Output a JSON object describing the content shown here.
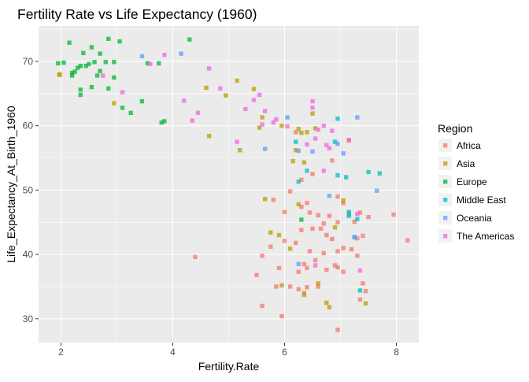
{
  "chart_data": {
    "type": "scatter",
    "title": "Fertility Rate vs Life Expectancy (1960)",
    "xlabel": "Fertility.Rate",
    "ylabel": "Life_Expectancy_At_Birth_1960",
    "xlim": [
      1.6,
      8.4
    ],
    "ylim": [
      26.3,
      75.5
    ],
    "xticks": [
      2,
      4,
      6,
      8
    ],
    "yticks": [
      30,
      40,
      50,
      60,
      70
    ],
    "grid": true,
    "legend": {
      "title": "Region",
      "placement": "right"
    },
    "series": [
      {
        "name": "Africa",
        "color": "#F8766D",
        "points": [
          [
            5.6,
            32.0
          ],
          [
            5.95,
            30.4
          ],
          [
            5.5,
            36.8
          ],
          [
            5.9,
            37.9
          ],
          [
            5.85,
            35.0
          ],
          [
            6.1,
            35.0
          ],
          [
            6.25,
            34.6
          ],
          [
            6.4,
            34.9
          ],
          [
            6.6,
            35.0
          ],
          [
            6.35,
            33.7
          ],
          [
            6.75,
            37.6
          ],
          [
            6.9,
            38.3
          ],
          [
            6.95,
            38.0
          ],
          [
            7.05,
            37.3
          ],
          [
            7.35,
            33.0
          ],
          [
            7.4,
            35.5
          ],
          [
            6.95,
            28.3
          ],
          [
            7.45,
            34.3
          ],
          [
            4.4,
            39.6
          ],
          [
            5.6,
            39.8
          ],
          [
            5.75,
            41.2
          ],
          [
            6.0,
            42.1
          ],
          [
            6.2,
            41.8
          ],
          [
            6.3,
            43.8
          ],
          [
            6.45,
            40.5
          ],
          [
            6.55,
            39.1
          ],
          [
            6.7,
            40.2
          ],
          [
            6.75,
            43.0
          ],
          [
            6.85,
            42.4
          ],
          [
            6.95,
            40.5
          ],
          [
            7.05,
            41.0
          ],
          [
            7.2,
            40.8
          ],
          [
            7.3,
            39.8
          ],
          [
            7.4,
            42.9
          ],
          [
            6.25,
            37.3
          ],
          [
            6.4,
            37.9
          ],
          [
            6.35,
            38.5
          ],
          [
            5.8,
            48.5
          ],
          [
            6.1,
            49.8
          ],
          [
            6.0,
            46.6
          ],
          [
            6.3,
            47.4
          ],
          [
            6.4,
            48.0
          ],
          [
            6.45,
            46.5
          ],
          [
            6.6,
            46.1
          ],
          [
            6.7,
            44.8
          ],
          [
            6.8,
            46.0
          ],
          [
            6.95,
            45.0
          ],
          [
            7.15,
            46.3
          ],
          [
            7.25,
            45.1
          ],
          [
            7.35,
            46.5
          ],
          [
            7.5,
            45.8
          ],
          [
            7.95,
            46.2
          ],
          [
            8.2,
            42.2
          ],
          [
            6.5,
            44.0
          ],
          [
            6.65,
            44.0
          ],
          [
            6.3,
            51.6
          ],
          [
            6.5,
            52.5
          ],
          [
            6.85,
            54.6
          ],
          [
            6.95,
            49.0
          ],
          [
            7.05,
            48.0
          ],
          [
            7.3,
            42.5
          ],
          [
            6.2,
            59.0
          ]
        ]
      },
      {
        "name": "Asia",
        "color": "#B79F00",
        "points": [
          [
            1.97,
            68.0
          ],
          [
            1.98,
            67.9
          ],
          [
            2.95,
            63.5
          ],
          [
            4.6,
            65.9
          ],
          [
            4.95,
            64.7
          ],
          [
            5.15,
            67.0
          ],
          [
            5.45,
            65.7
          ],
          [
            4.65,
            58.4
          ],
          [
            5.2,
            56.2
          ],
          [
            5.55,
            59.7
          ],
          [
            5.6,
            61.3
          ],
          [
            5.95,
            60.0
          ],
          [
            6.25,
            59.5
          ],
          [
            6.3,
            58.9
          ],
          [
            6.4,
            59.0
          ],
          [
            6.5,
            61.9
          ],
          [
            6.55,
            59.6
          ],
          [
            7.15,
            57.7
          ],
          [
            6.15,
            54.5
          ],
          [
            6.35,
            54.3
          ],
          [
            6.2,
            56.2
          ],
          [
            5.65,
            48.6
          ],
          [
            5.75,
            43.4
          ],
          [
            5.9,
            43.0
          ],
          [
            6.1,
            40.9
          ],
          [
            5.95,
            35.2
          ],
          [
            6.35,
            34.0
          ],
          [
            6.75,
            32.5
          ],
          [
            6.8,
            31.8
          ],
          [
            7.45,
            32.4
          ],
          [
            6.6,
            35.5
          ],
          [
            7.05,
            48.4
          ],
          [
            6.9,
            44.2
          ],
          [
            6.25,
            47.8
          ]
        ]
      },
      {
        "name": "Europe",
        "color": "#00BA38",
        "points": [
          [
            1.95,
            69.7
          ],
          [
            2.05,
            69.8
          ],
          [
            2.15,
            72.9
          ],
          [
            2.2,
            68.2
          ],
          [
            2.25,
            68.4
          ],
          [
            2.3,
            69.0
          ],
          [
            2.35,
            69.3
          ],
          [
            2.4,
            71.3
          ],
          [
            2.45,
            69.3
          ],
          [
            2.5,
            69.6
          ],
          [
            2.55,
            72.2
          ],
          [
            2.6,
            69.9
          ],
          [
            2.65,
            67.8
          ],
          [
            2.7,
            68.5
          ],
          [
            2.7,
            71.2
          ],
          [
            2.8,
            69.9
          ],
          [
            2.85,
            73.5
          ],
          [
            2.95,
            69.9
          ],
          [
            3.05,
            73.1
          ],
          [
            2.35,
            64.8
          ],
          [
            2.35,
            65.6
          ],
          [
            2.55,
            66.0
          ],
          [
            2.85,
            65.8
          ],
          [
            2.95,
            67.5
          ],
          [
            3.1,
            62.8
          ],
          [
            3.25,
            62.0
          ],
          [
            3.55,
            69.7
          ],
          [
            3.75,
            69.7
          ],
          [
            4.3,
            73.4
          ],
          [
            3.45,
            63.8
          ],
          [
            3.8,
            60.5
          ],
          [
            3.85,
            60.7
          ],
          [
            2.2,
            67.8
          ],
          [
            6.3,
            45.4
          ]
        ]
      },
      {
        "name": "Middle East",
        "color": "#00BFC4",
        "points": [
          [
            6.25,
            51.3
          ],
          [
            6.4,
            53.0
          ],
          [
            6.95,
            52.3
          ],
          [
            7.1,
            52.0
          ],
          [
            7.15,
            46.0
          ],
          [
            7.3,
            45.5
          ],
          [
            7.5,
            52.8
          ],
          [
            7.7,
            52.6
          ],
          [
            6.9,
            57.5
          ],
          [
            6.95,
            61.1
          ],
          [
            7.15,
            46.6
          ],
          [
            7.35,
            34.4
          ],
          [
            7.25,
            42.7
          ],
          [
            6.2,
            57.5
          ]
        ]
      },
      {
        "name": "Oceania",
        "color": "#619CFF",
        "points": [
          [
            3.45,
            70.8
          ],
          [
            4.15,
            71.2
          ],
          [
            5.65,
            56.4
          ],
          [
            6.05,
            61.3
          ],
          [
            6.25,
            56.1
          ],
          [
            6.5,
            56.0
          ],
          [
            6.8,
            49.1
          ],
          [
            7.05,
            55.7
          ],
          [
            7.3,
            61.3
          ],
          [
            7.65,
            49.9
          ],
          [
            6.25,
            38.5
          ],
          [
            7.25,
            42.7
          ],
          [
            6.95,
            57.2
          ]
        ]
      },
      {
        "name": "The Americas",
        "color": "#F564E3",
        "points": [
          [
            2.75,
            67.8
          ],
          [
            3.1,
            65.2
          ],
          [
            3.6,
            69.6
          ],
          [
            3.85,
            71.0
          ],
          [
            4.2,
            63.9
          ],
          [
            4.35,
            60.8
          ],
          [
            4.45,
            62.0
          ],
          [
            4.65,
            68.9
          ],
          [
            4.85,
            65.8
          ],
          [
            5.3,
            62.6
          ],
          [
            5.45,
            64.0
          ],
          [
            5.55,
            64.8
          ],
          [
            5.65,
            62.3
          ],
          [
            5.8,
            60.5
          ],
          [
            5.85,
            61.0
          ],
          [
            6.05,
            59.9
          ],
          [
            6.4,
            57.1
          ],
          [
            6.5,
            63.8
          ],
          [
            6.55,
            58.0
          ],
          [
            6.6,
            59.4
          ],
          [
            6.7,
            60.0
          ],
          [
            6.75,
            57.0
          ],
          [
            6.8,
            56.5
          ],
          [
            6.85,
            59.2
          ],
          [
            7.15,
            57.8
          ],
          [
            5.15,
            57.5
          ],
          [
            5.6,
            60.2
          ],
          [
            6.7,
            53.0
          ],
          [
            7.3,
            46.3
          ],
          [
            6.55,
            38.3
          ],
          [
            7.35,
            37.5
          ],
          [
            6.5,
            62.8
          ]
        ]
      }
    ]
  }
}
